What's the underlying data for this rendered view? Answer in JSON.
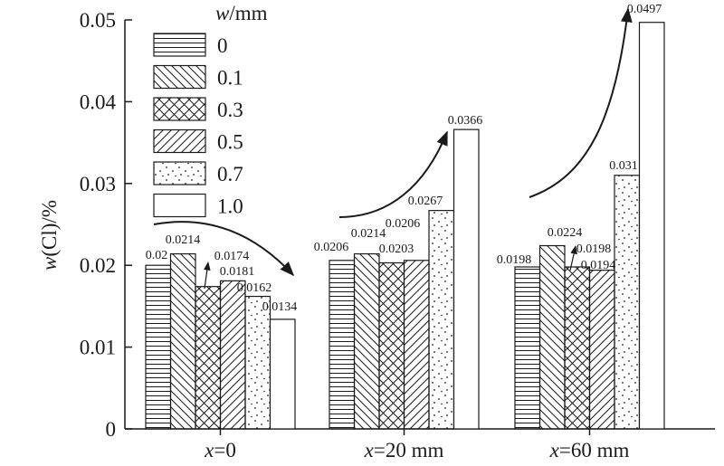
{
  "chart_data": {
    "type": "bar",
    "title": "",
    "xlabel": "",
    "ylabel": "w(Cl)/%",
    "ylim": [
      0,
      0.05
    ],
    "yticks": [
      "0",
      "0.01",
      "0.02",
      "0.03",
      "0.04",
      "0.05"
    ],
    "categories": [
      "x=0",
      "x=20 mm",
      "x=60 mm"
    ],
    "legend_title": "w/mm",
    "legend_position": "top-left",
    "series": [
      {
        "name": "0",
        "pattern": "horizontal-lines",
        "values": [
          0.02,
          0.0206,
          0.0198
        ]
      },
      {
        "name": "0.1",
        "pattern": "backslash-hatch",
        "values": [
          0.0214,
          0.0214,
          0.0224
        ]
      },
      {
        "name": "0.3",
        "pattern": "cross-hatch",
        "values": [
          0.0174,
          0.0203,
          0.0198
        ]
      },
      {
        "name": "0.5",
        "pattern": "slash-hatch",
        "values": [
          0.0181,
          0.0206,
          0.0194
        ]
      },
      {
        "name": "0.7",
        "pattern": "dots",
        "values": [
          0.0162,
          0.0267,
          0.031
        ]
      },
      {
        "name": "1.0",
        "pattern": "plain",
        "values": [
          0.0134,
          0.0366,
          0.0497
        ]
      }
    ],
    "data_labels": [
      [
        "0.02",
        "0.0214",
        "0.0174",
        "0.0181",
        "0.0162",
        "0.0134"
      ],
      [
        "0.0206",
        "0.0214",
        "0.0203",
        "0.0206",
        "0.0267",
        "0.0366"
      ],
      [
        "0.0198",
        "0.0224",
        "0.0198",
        "0.0194",
        "0.031",
        "0.0497"
      ]
    ],
    "trend_arrows": [
      "decreasing",
      "increasing",
      "increasing"
    ]
  }
}
